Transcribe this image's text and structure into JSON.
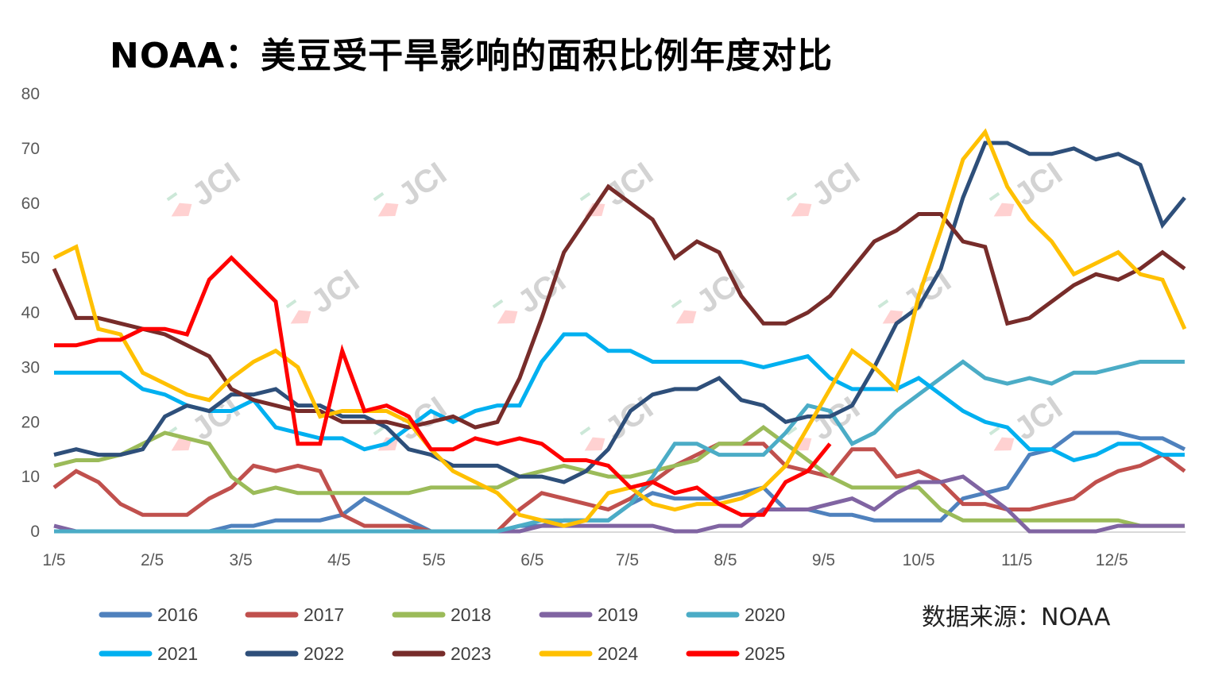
{
  "title": "NOAA：美豆受干旱影响的面积比例年度对比",
  "source_note": "数据来源：NOAA",
  "watermark": "JCI",
  "chart_data": {
    "type": "line",
    "title": "NOAA：美豆受干旱影响的面积比例年度对比",
    "xlabel": "",
    "ylabel": "",
    "ylim": [
      0,
      80
    ],
    "yticks": [
      0,
      10,
      20,
      30,
      40,
      50,
      60,
      70,
      80
    ],
    "xticks": [
      {
        "label": "1/5",
        "day": 0
      },
      {
        "label": "2/5",
        "day": 31
      },
      {
        "label": "3/5",
        "day": 59
      },
      {
        "label": "4/5",
        "day": 90
      },
      {
        "label": "5/5",
        "day": 120
      },
      {
        "label": "6/5",
        "day": 151
      },
      {
        "label": "7/5",
        "day": 181
      },
      {
        "label": "8/5",
        "day": 212
      },
      {
        "label": "9/5",
        "day": 243
      },
      {
        "label": "10/5",
        "day": 273
      },
      {
        "label": "11/5",
        "day": 304
      },
      {
        "label": "12/5",
        "day": 334
      }
    ],
    "x_step_days": 7,
    "grid": false,
    "legend_position": "bottom",
    "series": [
      {
        "name": "2016",
        "color": "#4F81BD",
        "values": [
          0,
          0,
          0,
          0,
          0,
          0,
          0,
          0,
          1,
          1,
          2,
          2,
          2,
          3,
          6,
          4,
          2,
          0,
          0,
          0,
          0,
          1,
          1,
          2,
          2,
          2,
          5,
          7,
          6,
          6,
          6,
          7,
          8,
          4,
          4,
          3,
          3,
          2,
          2,
          2,
          2,
          6,
          7,
          8,
          14,
          15,
          18,
          18,
          18,
          17,
          17,
          15
        ]
      },
      {
        "name": "2017",
        "color": "#C0504D",
        "values": [
          8,
          11,
          9,
          5,
          3,
          3,
          3,
          6,
          8,
          12,
          11,
          12,
          11,
          3,
          1,
          1,
          1,
          0,
          0,
          0,
          0,
          4,
          7,
          6,
          5,
          4,
          6,
          9,
          12,
          14,
          16,
          16,
          16,
          12,
          11,
          10,
          15,
          15,
          10,
          11,
          9,
          5,
          5,
          4,
          4,
          5,
          6,
          9,
          11,
          12,
          14,
          11
        ]
      },
      {
        "name": "2018",
        "color": "#9BBB59",
        "values": [
          12,
          13,
          13,
          14,
          16,
          18,
          17,
          16,
          10,
          7,
          8,
          7,
          7,
          7,
          7,
          7,
          7,
          8,
          8,
          8,
          8,
          10,
          11,
          12,
          11,
          10,
          10,
          11,
          12,
          13,
          16,
          16,
          19,
          16,
          13,
          10,
          8,
          8,
          8,
          8,
          4,
          2,
          2,
          2,
          2,
          2,
          2,
          2,
          2,
          1,
          1,
          1
        ]
      },
      {
        "name": "2019",
        "color": "#8064A2",
        "values": [
          1,
          0,
          0,
          0,
          0,
          0,
          0,
          0,
          0,
          0,
          0,
          0,
          0,
          0,
          0,
          0,
          0,
          0,
          0,
          0,
          0,
          0,
          1,
          1,
          1,
          1,
          1,
          1,
          0,
          0,
          1,
          1,
          4,
          4,
          4,
          5,
          6,
          4,
          7,
          9,
          9,
          10,
          7,
          4,
          0,
          0,
          0,
          0,
          1,
          1,
          1,
          1
        ]
      },
      {
        "name": "2020",
        "color": "#4BACC6",
        "values": [
          0,
          0,
          0,
          0,
          0,
          0,
          0,
          0,
          0,
          0,
          0,
          0,
          0,
          0,
          0,
          0,
          0,
          0,
          0,
          0,
          0,
          1,
          2,
          2,
          2,
          2,
          5,
          10,
          16,
          16,
          14,
          14,
          14,
          18,
          23,
          22,
          16,
          18,
          22,
          25,
          28,
          31,
          28,
          27,
          28,
          27,
          29,
          29,
          30,
          31,
          31,
          31
        ]
      },
      {
        "name": "2021",
        "color": "#00B0F0",
        "values": [
          29,
          29,
          29,
          29,
          26,
          25,
          23,
          22,
          22,
          24,
          19,
          18,
          17,
          17,
          15,
          16,
          19,
          22,
          20,
          22,
          23,
          23,
          31,
          36,
          36,
          33,
          33,
          31,
          31,
          31,
          31,
          31,
          30,
          31,
          32,
          28,
          26,
          26,
          26,
          28,
          25,
          22,
          20,
          19,
          15,
          15,
          13,
          14,
          16,
          16,
          14,
          14
        ]
      },
      {
        "name": "2022",
        "color": "#2E4F7A",
        "values": [
          14,
          15,
          14,
          14,
          15,
          21,
          23,
          22,
          25,
          25,
          26,
          23,
          23,
          21,
          21,
          19,
          15,
          14,
          12,
          12,
          12,
          10,
          10,
          9,
          11,
          15,
          22,
          25,
          26,
          26,
          28,
          24,
          23,
          20,
          21,
          21,
          23,
          30,
          38,
          41,
          48,
          61,
          71,
          71,
          69,
          69,
          70,
          68,
          69,
          67,
          56,
          61
        ]
      },
      {
        "name": "2023",
        "color": "#772C2A",
        "values": [
          48,
          39,
          39,
          38,
          37,
          36,
          34,
          32,
          26,
          24,
          23,
          22,
          22,
          20,
          20,
          20,
          19,
          20,
          21,
          19,
          20,
          28,
          39,
          51,
          57,
          63,
          60,
          57,
          50,
          53,
          51,
          43,
          38,
          38,
          40,
          43,
          48,
          53,
          55,
          58,
          58,
          53,
          52,
          38,
          39,
          42,
          45,
          47,
          46,
          48,
          51,
          48
        ]
      },
      {
        "name": "2024",
        "color": "#FFC000",
        "values": [
          50,
          52,
          37,
          36,
          29,
          27,
          25,
          24,
          28,
          31,
          33,
          30,
          21,
          22,
          22,
          22,
          20,
          15,
          11,
          9,
          7,
          3,
          2,
          1,
          2,
          7,
          8,
          5,
          4,
          5,
          5,
          6,
          8,
          12,
          19,
          26,
          33,
          30,
          26,
          43,
          55,
          68,
          73,
          63,
          57,
          53,
          47,
          49,
          51,
          47,
          46,
          37
        ]
      },
      {
        "name": "2025",
        "color": "#FF0000",
        "values": [
          34,
          34,
          35,
          35,
          37,
          37,
          36,
          46,
          50,
          46,
          42,
          16,
          16,
          33,
          22,
          23,
          21,
          15,
          15,
          17,
          16,
          17,
          16,
          13,
          13,
          12,
          8,
          9,
          7,
          8,
          5,
          3,
          3,
          9,
          11,
          16
        ]
      }
    ]
  }
}
